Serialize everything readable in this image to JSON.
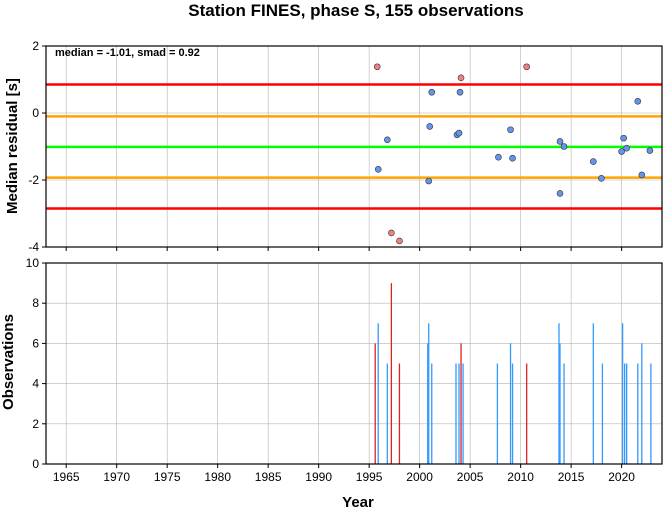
{
  "chart_data": {
    "type": "scatter",
    "title": "Station FINES, phase S, 155 observations",
    "xlabel": "Year",
    "x_ticks": [
      "1965",
      "1970",
      "1975",
      "1980",
      "1985",
      "1990",
      "1995",
      "2000",
      "2005",
      "2010",
      "2015",
      "2020"
    ],
    "xlim": [
      1963,
      2024
    ],
    "colors": {
      "red_line": "#ff0000",
      "orange_line": "#ffa500",
      "green_line": "#00ff00",
      "point_blue": "#6495ed",
      "point_red": "#f08080",
      "bar_blue": "#3399ff",
      "bar_red": "#dd2222",
      "grid": "#b4b4b4"
    },
    "panels": [
      {
        "name": "residuals",
        "type": "scatter",
        "ylabel": "Median residual [s]",
        "ylim": [
          -4,
          2
        ],
        "y_ticks": [
          "2",
          "0",
          "-2",
          "-4"
        ],
        "annotation": "median = -1.01,  smad = 0.92",
        "hlines": [
          {
            "y": 0.85,
            "color": "red"
          },
          {
            "y": -0.1,
            "color": "orange"
          },
          {
            "y": -1.01,
            "color": "green"
          },
          {
            "y": -1.93,
            "color": "orange"
          },
          {
            "y": -2.85,
            "color": "red"
          }
        ],
        "points": [
          {
            "x": 1995.8,
            "y": 1.38,
            "c": "red"
          },
          {
            "x": 1995.9,
            "y": -1.68,
            "c": "blue"
          },
          {
            "x": 1996.8,
            "y": -0.8,
            "c": "blue"
          },
          {
            "x": 1997.2,
            "y": -3.58,
            "c": "red"
          },
          {
            "x": 1998.0,
            "y": -3.82,
            "c": "red"
          },
          {
            "x": 2000.9,
            "y": -2.03,
            "c": "blue"
          },
          {
            "x": 2001.0,
            "y": -0.4,
            "c": "blue"
          },
          {
            "x": 2001.2,
            "y": 0.62,
            "c": "blue"
          },
          {
            "x": 2003.7,
            "y": -0.65,
            "c": "blue"
          },
          {
            "x": 2003.9,
            "y": -0.6,
            "c": "blue"
          },
          {
            "x": 2004.0,
            "y": 0.62,
            "c": "blue"
          },
          {
            "x": 2004.1,
            "y": 1.05,
            "c": "red"
          },
          {
            "x": 2007.8,
            "y": -1.32,
            "c": "blue"
          },
          {
            "x": 2009.0,
            "y": -0.5,
            "c": "blue"
          },
          {
            "x": 2009.2,
            "y": -1.35,
            "c": "blue"
          },
          {
            "x": 2010.6,
            "y": 1.38,
            "c": "red"
          },
          {
            "x": 2013.9,
            "y": -0.85,
            "c": "blue"
          },
          {
            "x": 2013.9,
            "y": -2.4,
            "c": "blue"
          },
          {
            "x": 2014.3,
            "y": -1.0,
            "c": "blue"
          },
          {
            "x": 2017.2,
            "y": -1.45,
            "c": "blue"
          },
          {
            "x": 2018.0,
            "y": -1.95,
            "c": "blue"
          },
          {
            "x": 2020.0,
            "y": -1.15,
            "c": "blue"
          },
          {
            "x": 2020.2,
            "y": -0.75,
            "c": "blue"
          },
          {
            "x": 2020.5,
            "y": -1.05,
            "c": "blue"
          },
          {
            "x": 2021.6,
            "y": 0.35,
            "c": "blue"
          },
          {
            "x": 2022.0,
            "y": -1.85,
            "c": "blue"
          },
          {
            "x": 2022.8,
            "y": -1.12,
            "c": "blue"
          }
        ]
      },
      {
        "name": "observations",
        "type": "bar",
        "ylabel": "Observations",
        "ylim": [
          0,
          10
        ],
        "y_ticks": [
          "10",
          "8",
          "6",
          "4",
          "2",
          "0"
        ],
        "bars": [
          {
            "x": 1995.6,
            "y": 6,
            "c": "red"
          },
          {
            "x": 1995.9,
            "y": 7,
            "c": "blue"
          },
          {
            "x": 1996.8,
            "y": 5,
            "c": "blue"
          },
          {
            "x": 1997.2,
            "y": 9,
            "c": "red"
          },
          {
            "x": 1998.0,
            "y": 5,
            "c": "red"
          },
          {
            "x": 2000.8,
            "y": 6,
            "c": "blue"
          },
          {
            "x": 2000.9,
            "y": 7,
            "c": "blue"
          },
          {
            "x": 2001.2,
            "y": 5,
            "c": "blue"
          },
          {
            "x": 2003.6,
            "y": 5,
            "c": "blue"
          },
          {
            "x": 2003.9,
            "y": 5,
            "c": "blue"
          },
          {
            "x": 2004.1,
            "y": 6,
            "c": "red"
          },
          {
            "x": 2004.3,
            "y": 5,
            "c": "blue"
          },
          {
            "x": 2007.7,
            "y": 5,
            "c": "blue"
          },
          {
            "x": 2009.0,
            "y": 6,
            "c": "blue"
          },
          {
            "x": 2009.2,
            "y": 5,
            "c": "blue"
          },
          {
            "x": 2010.6,
            "y": 5,
            "c": "red"
          },
          {
            "x": 2013.8,
            "y": 7,
            "c": "blue"
          },
          {
            "x": 2013.9,
            "y": 6,
            "c": "blue"
          },
          {
            "x": 2014.3,
            "y": 5,
            "c": "blue"
          },
          {
            "x": 2017.2,
            "y": 7,
            "c": "blue"
          },
          {
            "x": 2018.1,
            "y": 5,
            "c": "blue"
          },
          {
            "x": 2020.1,
            "y": 7,
            "c": "blue"
          },
          {
            "x": 2020.3,
            "y": 5,
            "c": "blue"
          },
          {
            "x": 2020.5,
            "y": 5,
            "c": "blue"
          },
          {
            "x": 2021.6,
            "y": 5,
            "c": "blue"
          },
          {
            "x": 2022.0,
            "y": 6,
            "c": "blue"
          },
          {
            "x": 2022.9,
            "y": 5,
            "c": "blue"
          }
        ]
      }
    ]
  }
}
